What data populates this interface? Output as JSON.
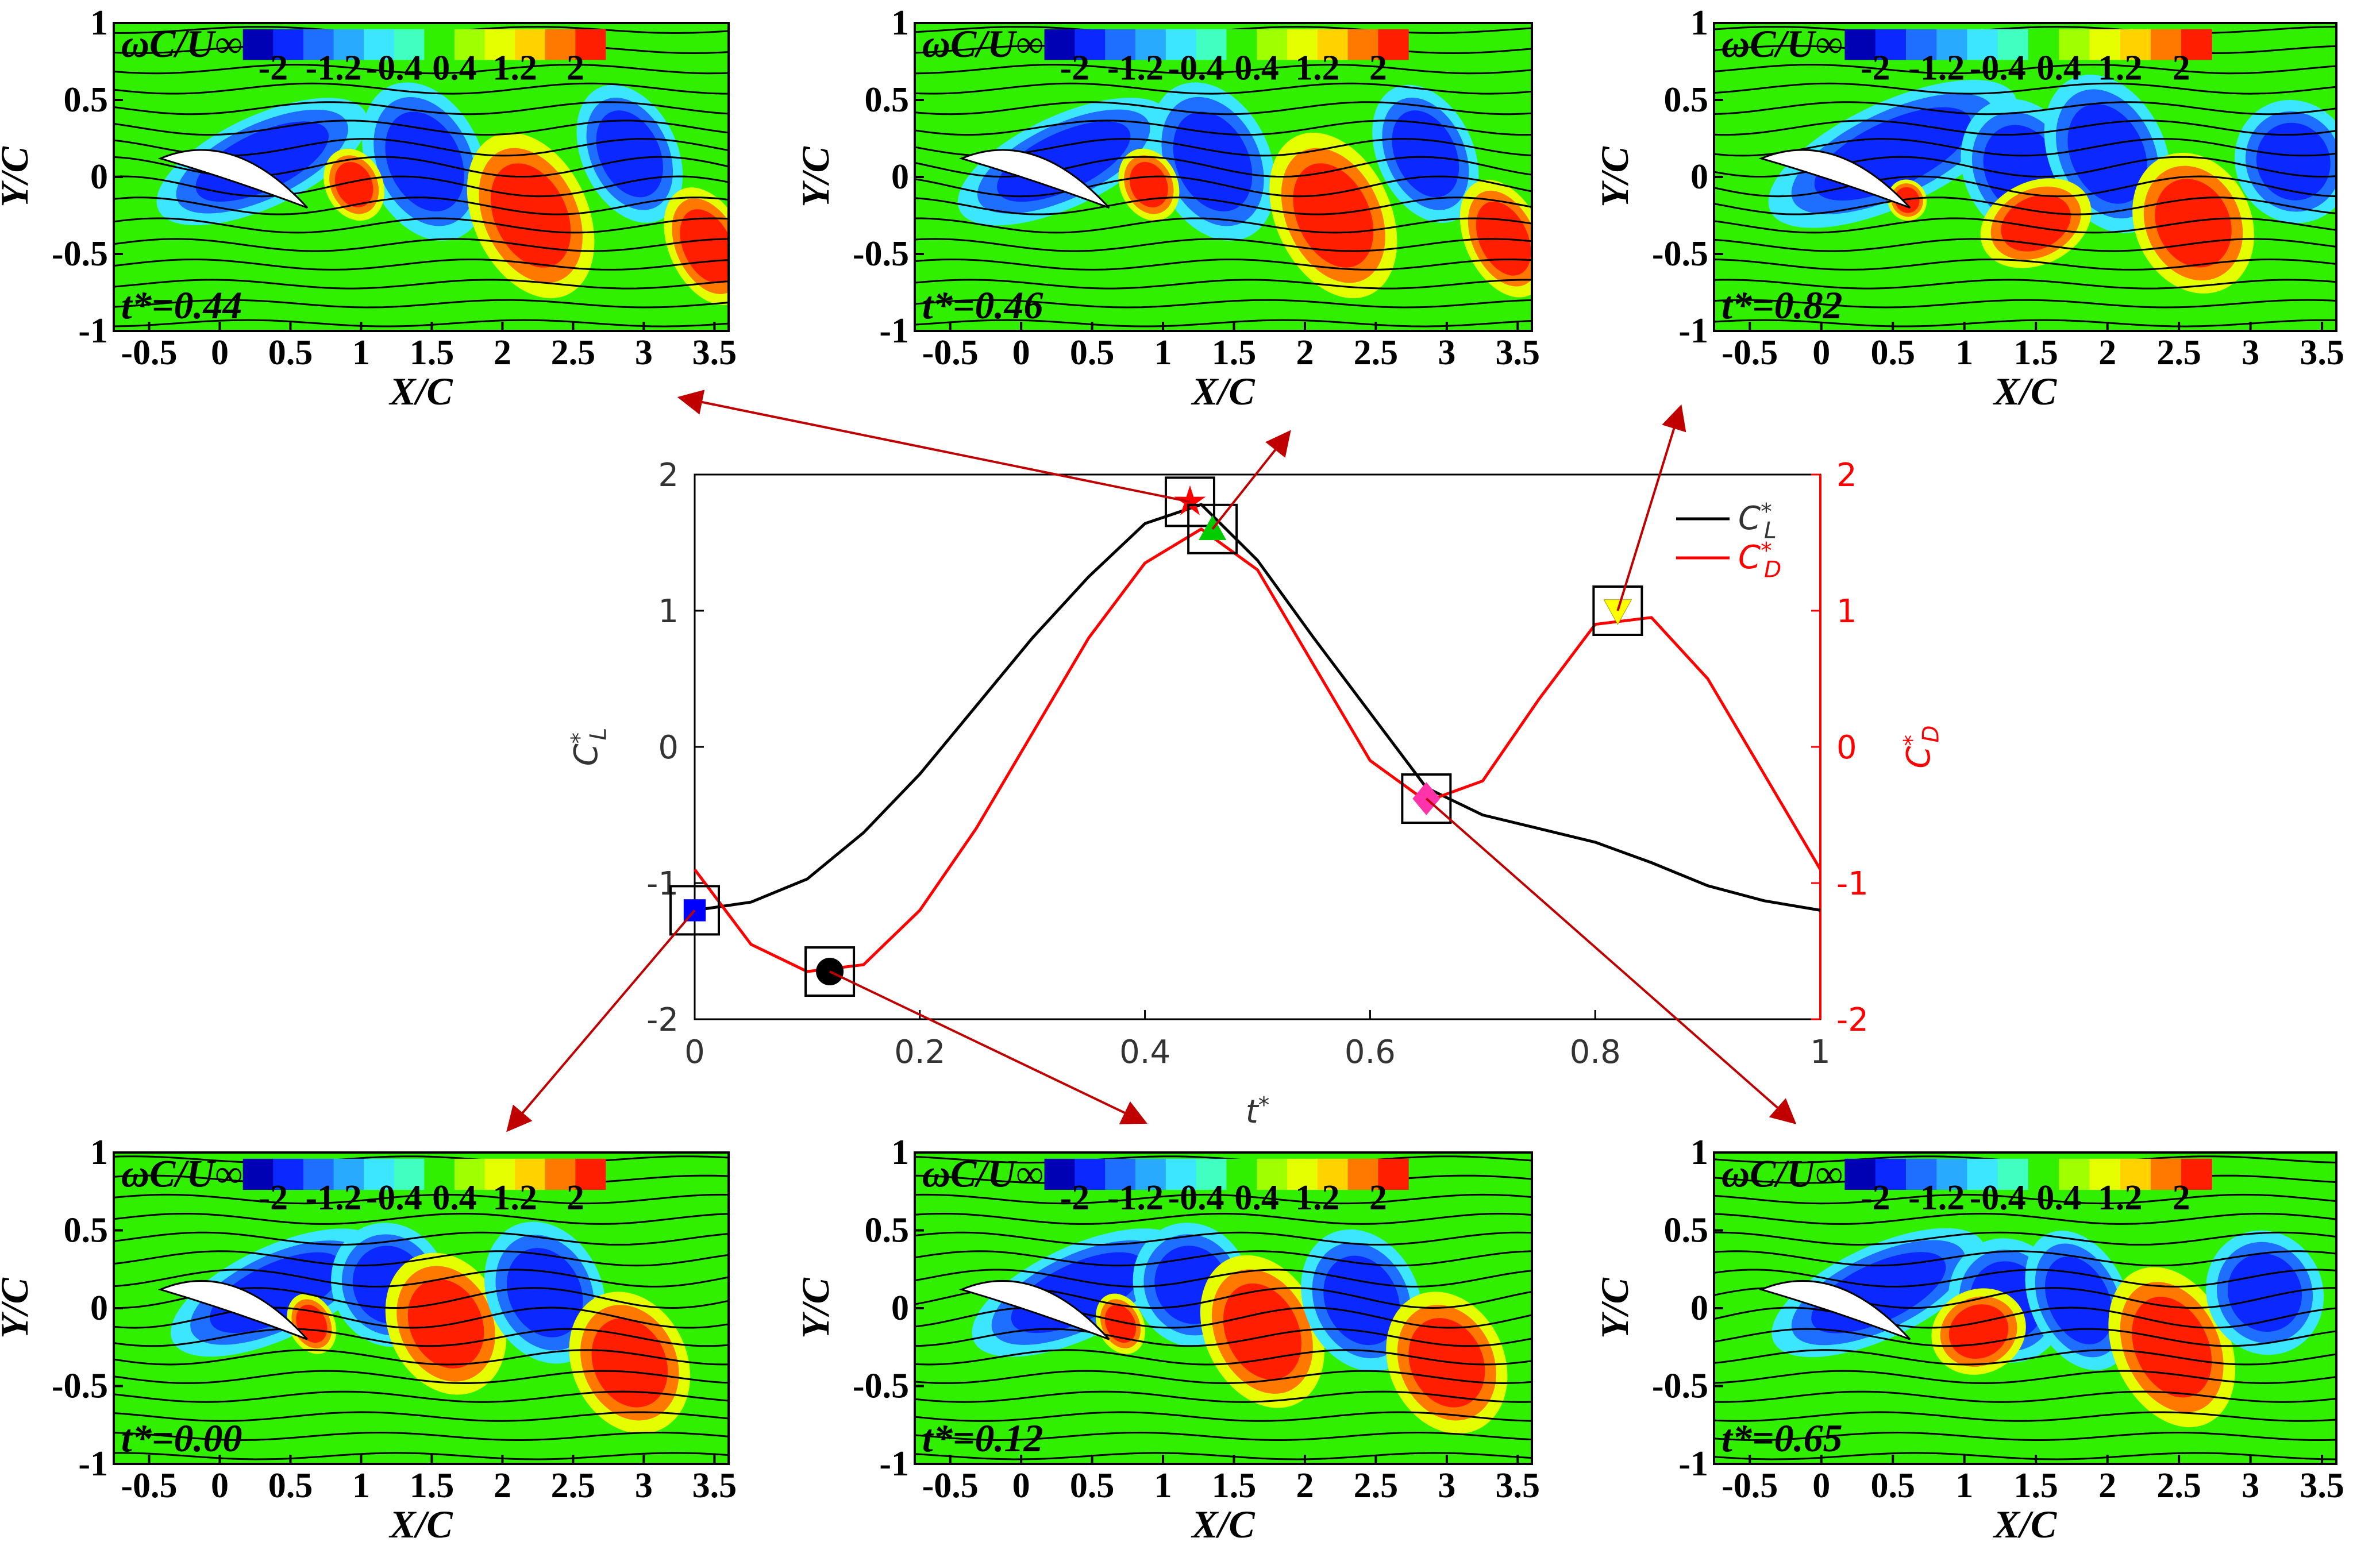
{
  "chart_data": [
    {
      "type": "line",
      "xlabel": "t*",
      "ylabel": "C*L",
      "y2label": "C*D",
      "xlim": [
        0,
        1
      ],
      "ylim": [
        -2,
        2
      ],
      "y2lim": [
        -2,
        2
      ],
      "xticks": [
        0,
        0.2,
        0.4,
        0.6,
        0.8,
        1
      ],
      "yticks": [
        -2,
        -1,
        0,
        1,
        2
      ],
      "y2ticks": [
        -2,
        -1,
        0,
        1,
        2
      ],
      "legend": "upper right",
      "x": [
        0,
        0.05,
        0.1,
        0.15,
        0.2,
        0.25,
        0.3,
        0.35,
        0.4,
        0.45,
        0.5,
        0.55,
        0.6,
        0.65,
        0.7,
        0.75,
        0.8,
        0.85,
        0.9,
        0.95,
        1
      ],
      "series": [
        {
          "name": "C*L",
          "color": "#000000",
          "values": [
            -1.2,
            -1.14,
            -0.97,
            -0.63,
            -0.2,
            0.3,
            0.8,
            1.25,
            1.64,
            1.78,
            1.37,
            0.8,
            0.25,
            -0.3,
            -0.5,
            -0.6,
            -0.7,
            -0.85,
            -1.02,
            -1.13,
            -1.2
          ]
        },
        {
          "name": "C*D",
          "color": "#ff0000",
          "axis": "y2",
          "values": [
            -0.9,
            -1.45,
            -1.65,
            -1.6,
            -1.2,
            -0.6,
            0.1,
            0.8,
            1.35,
            1.6,
            1.3,
            0.6,
            -0.1,
            -0.4,
            -0.25,
            0.35,
            0.9,
            0.95,
            0.5,
            -0.2,
            -0.9
          ]
        }
      ],
      "markers": [
        {
          "x": 0,
          "y": -1.2,
          "color": "#0000ff",
          "shape": "square"
        },
        {
          "x": 0.12,
          "y": -1.65,
          "color": "#000000",
          "shape": "circle"
        },
        {
          "x": 0.44,
          "y": 1.8,
          "color": "#ff0000",
          "shape": "star"
        },
        {
          "x": 0.46,
          "y": 1.6,
          "color": "#00cc00",
          "shape": "triangle"
        },
        {
          "x": 0.65,
          "y": -0.38,
          "color": "#ff33aa",
          "shape": "diamond"
        },
        {
          "x": 0.82,
          "y": 1.0,
          "color": "#ffff00",
          "shape": "triangle-down"
        }
      ]
    },
    {
      "type": "contour",
      "annotation": "t*=0.44",
      "colorbar_label": "ωC/U∞",
      "colorbar_ticks": [
        -2,
        -1.2,
        -0.4,
        0.4,
        1.2,
        2
      ],
      "xlabel": "X/C",
      "ylabel": "Y/C",
      "xlim": [
        -0.75,
        3.6
      ],
      "ylim": [
        -1,
        1
      ],
      "xticks": [
        -0.5,
        0,
        0.5,
        1,
        1.5,
        2,
        2.5,
        3,
        3.5
      ],
      "yticks": [
        -1,
        -0.5,
        0,
        0.5,
        1
      ]
    },
    {
      "type": "contour",
      "annotation": "t*=0.46",
      "colorbar_label": "ωC/U∞",
      "colorbar_ticks": [
        -2,
        -1.2,
        -0.4,
        0.4,
        1.2,
        2
      ],
      "xlabel": "X/C",
      "ylabel": "Y/C",
      "xlim": [
        -0.75,
        3.6
      ],
      "ylim": [
        -1,
        1
      ],
      "xticks": [
        -0.5,
        0,
        0.5,
        1,
        1.5,
        2,
        2.5,
        3,
        3.5
      ],
      "yticks": [
        -1,
        -0.5,
        0,
        0.5,
        1
      ]
    },
    {
      "type": "contour",
      "annotation": "t*=0.82",
      "colorbar_label": "ωC/U∞",
      "colorbar_ticks": [
        -2,
        -1.2,
        -0.4,
        0.4,
        1.2,
        2
      ],
      "xlabel": "X/C",
      "ylabel": "Y/C",
      "xlim": [
        -0.75,
        3.6
      ],
      "ylim": [
        -1,
        1
      ],
      "xticks": [
        -0.5,
        0,
        0.5,
        1,
        1.5,
        2,
        2.5,
        3,
        3.5
      ],
      "yticks": [
        -1,
        -0.5,
        0,
        0.5,
        1
      ]
    },
    {
      "type": "contour",
      "annotation": "t*=0.00",
      "colorbar_label": "ωC/U∞",
      "colorbar_ticks": [
        -2,
        -1.2,
        -0.4,
        0.4,
        1.2,
        2
      ],
      "xlabel": "X/C",
      "ylabel": "Y/C",
      "xlim": [
        -0.75,
        3.6
      ],
      "ylim": [
        -1,
        1
      ],
      "xticks": [
        -0.5,
        0,
        0.5,
        1,
        1.5,
        2,
        2.5,
        3,
        3.5
      ],
      "yticks": [
        -1,
        -0.5,
        0,
        0.5,
        1
      ]
    },
    {
      "type": "contour",
      "annotation": "t*=0.12",
      "colorbar_label": "ωC/U∞",
      "colorbar_ticks": [
        -2,
        -1.2,
        -0.4,
        0.4,
        1.2,
        2
      ],
      "xlabel": "X/C",
      "ylabel": "Y/C",
      "xlim": [
        -0.75,
        3.6
      ],
      "ylim": [
        -1,
        1
      ],
      "xticks": [
        -0.5,
        0,
        0.5,
        1,
        1.5,
        2,
        2.5,
        3,
        3.5
      ],
      "yticks": [
        -1,
        -0.5,
        0,
        0.5,
        1
      ]
    },
    {
      "type": "contour",
      "annotation": "t*=0.65",
      "colorbar_label": "ωC/U∞",
      "colorbar_ticks": [
        -2,
        -1.2,
        -0.4,
        0.4,
        1.2,
        2
      ],
      "xlabel": "X/C",
      "ylabel": "Y/C",
      "xlim": [
        -0.75,
        3.6
      ],
      "ylim": [
        -1,
        1
      ],
      "xticks": [
        -0.5,
        0,
        0.5,
        1,
        1.5,
        2,
        2.5,
        3,
        3.5
      ],
      "yticks": [
        -1,
        -0.5,
        0,
        0.5,
        1
      ]
    }
  ],
  "colormap": [
    "#0000b4",
    "#0a28ff",
    "#1e6eff",
    "#28aaff",
    "#3ce6ff",
    "#40ffc0",
    "#30f000",
    "#a0ff00",
    "#e6ff00",
    "#ffd200",
    "#ff7800",
    "#ff1e00"
  ],
  "clim": [
    -2.4,
    2.4
  ]
}
